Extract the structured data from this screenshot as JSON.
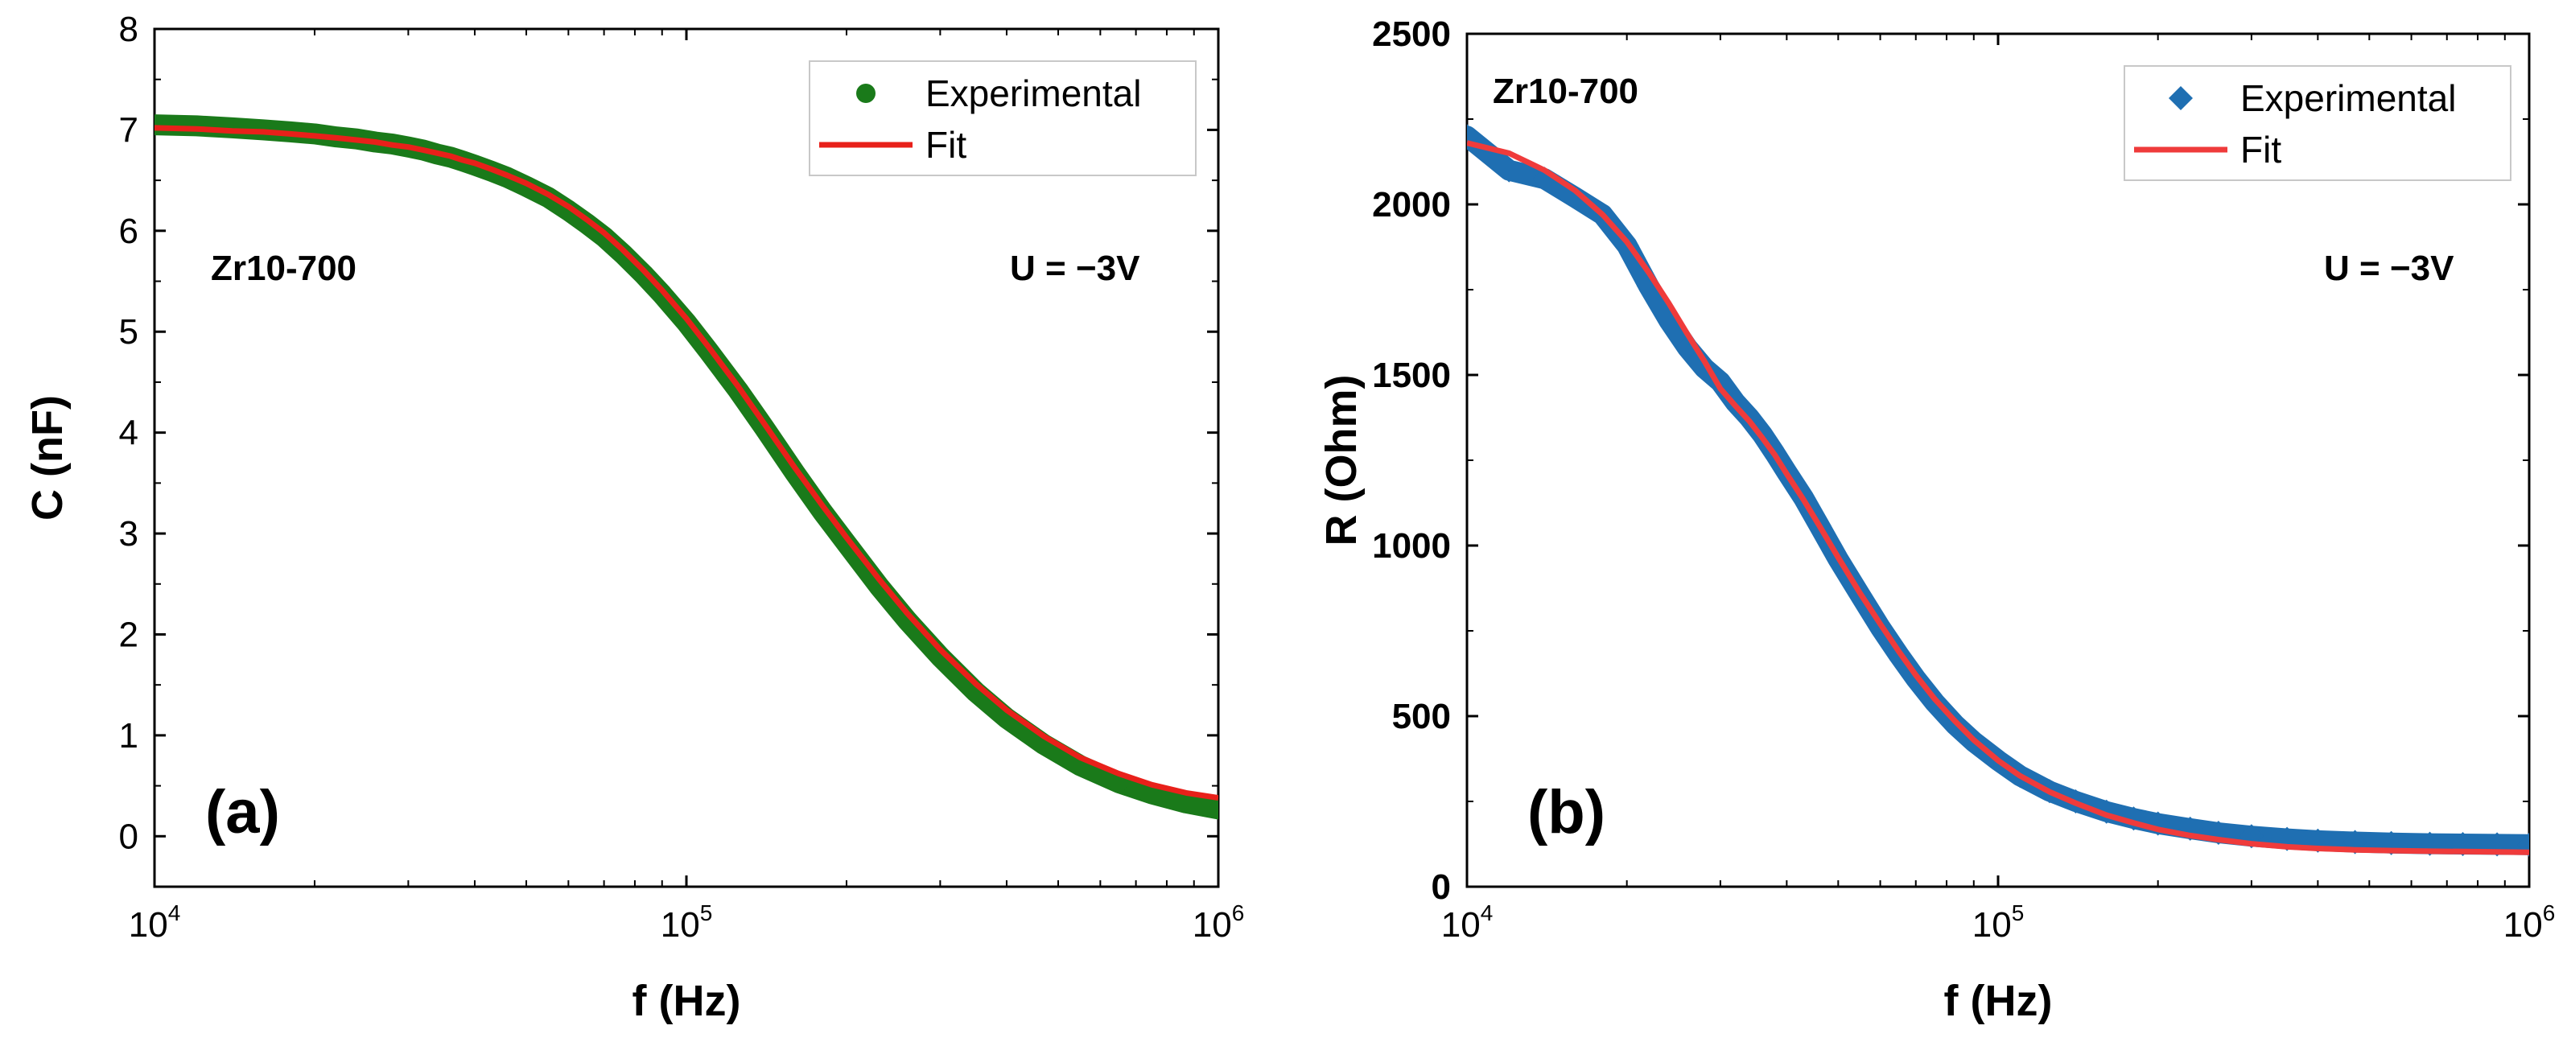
{
  "chart_data": [
    {
      "type": "scatter",
      "panel_label": "(a)",
      "xlabel": "f (Hz)",
      "ylabel": "C (nF)",
      "xscale": "log",
      "xlim": [
        10000,
        1000000
      ],
      "ylim": [
        -0.5,
        8
      ],
      "xticks": [
        10000,
        100000,
        1000000
      ],
      "xtick_labels": [
        {
          "base": "10",
          "exp": "4"
        },
        {
          "base": "10",
          "exp": "5"
        },
        {
          "base": "10",
          "exp": "6"
        }
      ],
      "yticks": [
        0,
        1,
        2,
        3,
        4,
        5,
        6,
        7,
        8
      ],
      "ytick_labels": [
        "0",
        "1",
        "2",
        "3",
        "4",
        "5",
        "6",
        "7",
        "8"
      ],
      "ytick_bold": false,
      "annotations": [
        "Zr10-700",
        "U = −3V"
      ],
      "legend_position": "top-right",
      "series": [
        {
          "name": "Experimental",
          "marker": "circle",
          "color": "#1a7a1a",
          "x": [
            10000,
            12000,
            14000,
            16000,
            18000,
            20000,
            22000,
            24000,
            26000,
            28000,
            30000,
            32000,
            34000,
            36000,
            38000,
            40000,
            43000,
            46000,
            50000,
            55000,
            60000,
            65000,
            70000,
            76000,
            83000,
            90000,
            100000,
            110000,
            125000,
            140000,
            160000,
            180000,
            200000,
            230000,
            260000,
            300000,
            350000,
            400000,
            470000,
            550000,
            650000,
            750000,
            870000,
            1000000
          ],
          "y": [
            7.05,
            7.04,
            7.02,
            7.0,
            6.98,
            6.96,
            6.93,
            6.91,
            6.88,
            6.86,
            6.83,
            6.8,
            6.76,
            6.73,
            6.69,
            6.65,
            6.59,
            6.53,
            6.44,
            6.33,
            6.2,
            6.07,
            5.94,
            5.77,
            5.57,
            5.37,
            5.09,
            4.81,
            4.42,
            4.05,
            3.6,
            3.22,
            2.9,
            2.48,
            2.14,
            1.78,
            1.43,
            1.17,
            0.91,
            0.7,
            0.53,
            0.42,
            0.33,
            0.27
          ]
        },
        {
          "name": "Fit",
          "line": "solid",
          "color": "#e8201a",
          "x": [
            10000,
            12000,
            14000,
            16000,
            18000,
            20000,
            22000,
            24000,
            26000,
            28000,
            30000,
            32000,
            34000,
            36000,
            38000,
            40000,
            43000,
            46000,
            50000,
            55000,
            60000,
            65000,
            70000,
            76000,
            83000,
            90000,
            100000,
            110000,
            125000,
            140000,
            160000,
            180000,
            200000,
            230000,
            260000,
            300000,
            350000,
            400000,
            470000,
            550000,
            650000,
            750000,
            870000,
            1000000
          ],
          "y": [
            7.02,
            7.01,
            6.99,
            6.98,
            6.96,
            6.94,
            6.92,
            6.9,
            6.88,
            6.85,
            6.83,
            6.8,
            6.77,
            6.74,
            6.7,
            6.67,
            6.61,
            6.55,
            6.47,
            6.36,
            6.24,
            6.11,
            5.98,
            5.81,
            5.61,
            5.41,
            5.13,
            4.85,
            4.46,
            4.09,
            3.65,
            3.28,
            2.96,
            2.55,
            2.21,
            1.85,
            1.51,
            1.25,
            0.99,
            0.78,
            0.62,
            0.51,
            0.43,
            0.38
          ]
        }
      ]
    },
    {
      "type": "scatter",
      "panel_label": "(b)",
      "xlabel": "f (Hz)",
      "ylabel": "R (Ohm)",
      "xscale": "log",
      "xlim": [
        10000,
        1000000
      ],
      "ylim": [
        0,
        2500
      ],
      "xticks": [
        10000,
        100000,
        1000000
      ],
      "xtick_labels": [
        {
          "base": "10",
          "exp": "4"
        },
        {
          "base": "10",
          "exp": "5"
        },
        {
          "base": "10",
          "exp": "6"
        }
      ],
      "yticks": [
        0,
        500,
        1000,
        1500,
        2000,
        2500
      ],
      "ytick_labels": [
        "0",
        "500",
        "1000",
        "1500",
        "2000",
        "2500"
      ],
      "ytick_bold": true,
      "annotations": [
        "Zr10-700",
        "U = −3V"
      ],
      "legend_position": "top-right",
      "series": [
        {
          "name": "Experimental",
          "marker": "diamond",
          "color": "#1f6fb2",
          "x": [
            10000,
            12000,
            14000,
            16000,
            18000,
            20000,
            22000,
            24000,
            26000,
            28000,
            30000,
            32000,
            34000,
            36000,
            38000,
            40000,
            43000,
            46000,
            50000,
            55000,
            60000,
            65000,
            70000,
            76000,
            83000,
            90000,
            100000,
            110000,
            125000,
            140000,
            160000,
            180000,
            200000,
            230000,
            260000,
            300000,
            350000,
            400000,
            470000,
            550000,
            650000,
            750000,
            870000,
            1000000
          ],
          "y": [
            2200,
            2100,
            2075,
            2020,
            1970,
            1880,
            1760,
            1660,
            1580,
            1520,
            1480,
            1420,
            1375,
            1325,
            1270,
            1215,
            1140,
            1060,
            960,
            855,
            760,
            680,
            610,
            540,
            475,
            425,
            370,
            325,
            280,
            250,
            220,
            200,
            185,
            170,
            158,
            148,
            140,
            135,
            131,
            128,
            126,
            125,
            124,
            123
          ]
        },
        {
          "name": "Fit",
          "line": "solid",
          "color": "#ef3b3b",
          "x": [
            10000,
            12000,
            14000,
            16000,
            18000,
            20000,
            22000,
            24000,
            26000,
            28000,
            30000,
            32000,
            34000,
            36000,
            38000,
            40000,
            43000,
            46000,
            50000,
            55000,
            60000,
            65000,
            70000,
            76000,
            83000,
            90000,
            100000,
            110000,
            125000,
            140000,
            160000,
            180000,
            200000,
            230000,
            260000,
            300000,
            350000,
            400000,
            470000,
            550000,
            650000,
            750000,
            870000,
            1000000
          ],
          "y": [
            2180,
            2150,
            2100,
            2040,
            1970,
            1890,
            1800,
            1710,
            1620,
            1540,
            1460,
            1410,
            1365,
            1315,
            1265,
            1210,
            1135,
            1060,
            965,
            860,
            770,
            690,
            620,
            550,
            485,
            430,
            370,
            325,
            278,
            245,
            210,
            187,
            168,
            150,
            138,
            126,
            117,
            112,
            108,
            106,
            104,
            103,
            102,
            101
          ]
        }
      ]
    }
  ]
}
